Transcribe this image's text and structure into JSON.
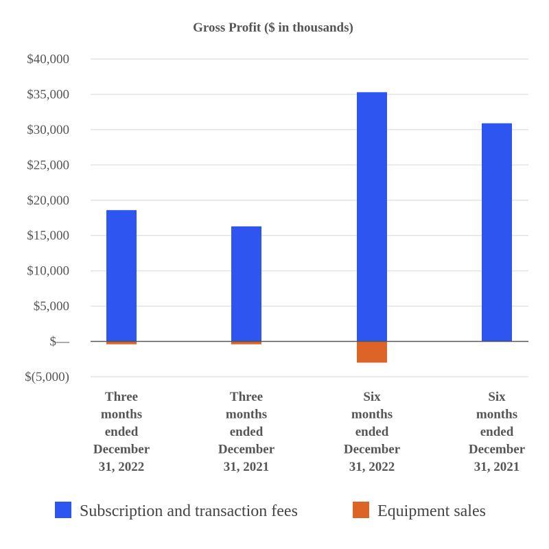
{
  "chart_data": {
    "type": "bar",
    "title": "Gross Profit ($ in thousands)",
    "xlabel": "",
    "ylabel": "",
    "categories": [
      "Three months ended December 31, 2022",
      "Three months ended December 31, 2021",
      "Six months ended December 31, 2022",
      "Six months ended December 31, 2021"
    ],
    "category_lines": [
      [
        "Three",
        "months",
        "ended",
        "December",
        "31, 2022"
      ],
      [
        "Three",
        "months",
        "ended",
        "December",
        "31, 2021"
      ],
      [
        "Six",
        "months",
        "ended",
        "December",
        "31, 2022"
      ],
      [
        "Six",
        "months",
        "ended",
        "December",
        "31, 2021"
      ]
    ],
    "series": [
      {
        "name": "Subscription and transaction fees",
        "color": "#2f55f0",
        "values": [
          18600,
          16300,
          35300,
          30900
        ]
      },
      {
        "name": "Equipment sales",
        "color": "#dd6427",
        "values": [
          -400,
          -400,
          -3000,
          0
        ]
      }
    ],
    "ylim": [
      -5000,
      40000
    ],
    "yticks": [
      40000,
      35000,
      30000,
      25000,
      20000,
      15000,
      10000,
      5000,
      0,
      -5000
    ],
    "ytick_labels": [
      "$40,000",
      "$35,000",
      "$30,000",
      "$25,000",
      "$20,000",
      "$15,000",
      "$10,000",
      "$5,000",
      "$—",
      "$(5,000)"
    ],
    "grid": true,
    "legend_position": "bottom"
  }
}
